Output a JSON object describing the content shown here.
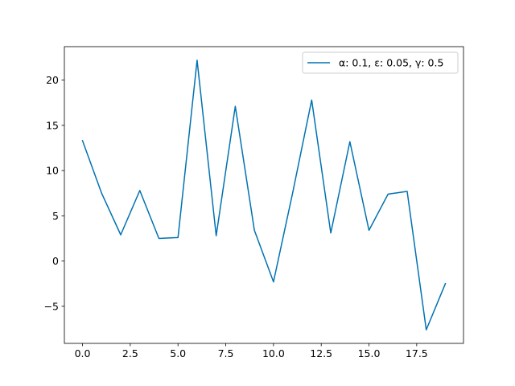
{
  "chart_data": {
    "type": "line",
    "x": [
      0,
      1,
      2,
      3,
      4,
      5,
      6,
      7,
      8,
      9,
      10,
      11,
      12,
      13,
      14,
      15,
      16,
      17,
      18,
      19
    ],
    "series": [
      {
        "name": "α: 0.1, ε: 0.05, γ: 0.5",
        "color": "#0072b2",
        "values": [
          13.3,
          7.5,
          2.9,
          7.8,
          2.5,
          2.6,
          22.2,
          2.8,
          17.1,
          3.4,
          -2.3,
          7.5,
          17.8,
          3.1,
          13.2,
          3.4,
          7.4,
          7.7,
          -7.6,
          -2.5
        ]
      }
    ],
    "title": "",
    "xlabel": "",
    "ylabel": "",
    "xlim": [
      -0.95,
      19.95
    ],
    "ylim": [
      -9.1,
      23.7
    ],
    "xticks": [
      0.0,
      2.5,
      5.0,
      7.5,
      10.0,
      12.5,
      15.0,
      17.5
    ],
    "xtick_labels": [
      "0.0",
      "2.5",
      "5.0",
      "7.5",
      "10.0",
      "12.5",
      "15.0",
      "17.5"
    ],
    "yticks": [
      -5,
      0,
      5,
      10,
      15,
      20
    ],
    "ytick_labels": [
      "−5",
      "0",
      "5",
      "10",
      "15",
      "20"
    ],
    "grid": false,
    "legend_position": "upper right"
  }
}
